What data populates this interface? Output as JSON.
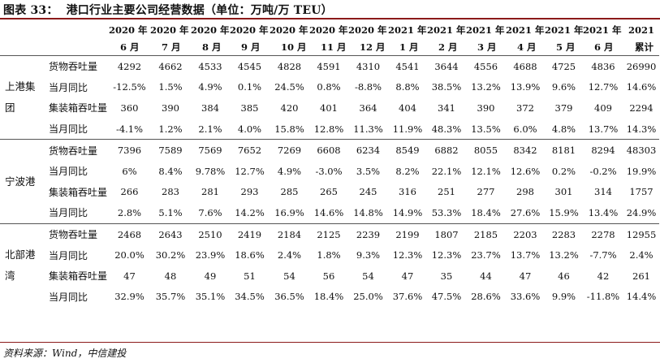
{
  "title": {
    "label": "图表 33：",
    "text": "港口行业主要公司经营数据（单位：万吨/万 TEU）"
  },
  "header": {
    "years": [
      "2020 年",
      "2020 年",
      "2020 年",
      "2020 年",
      "2020 年",
      "2020 年",
      "2020 年",
      "2021 年",
      "2021 年",
      "2021 年",
      "2021 年",
      "2021 年",
      "2021 年",
      "2021"
    ],
    "months": [
      "6 月",
      "7 月",
      "8 月",
      "9 月",
      "10 月",
      "11 月",
      "12 月",
      "1 月",
      "2 月",
      "3 月",
      "4 月",
      "5 月",
      "6 月",
      "累计"
    ]
  },
  "groups": [
    {
      "name": "上港集团",
      "rows": [
        {
          "metric": "货物吞吐量",
          "values": [
            "4292",
            "4662",
            "4533",
            "4545",
            "4828",
            "4591",
            "4310",
            "4541",
            "3644",
            "4556",
            "4688",
            "4725",
            "4836",
            "26990"
          ]
        },
        {
          "metric": "当月同比",
          "values": [
            "-12.5%",
            "1.5%",
            "4.9%",
            "0.1%",
            "24.5%",
            "0.8%",
            "-8.8%",
            "8.8%",
            "38.5%",
            "13.2%",
            "13.9%",
            "9.6%",
            "12.7%",
            "14.6%"
          ]
        },
        {
          "metric": "集装箱吞吐量",
          "values": [
            "360",
            "390",
            "384",
            "385",
            "420",
            "401",
            "364",
            "404",
            "341",
            "390",
            "372",
            "379",
            "409",
            "2294"
          ]
        },
        {
          "metric": "当月同比",
          "values": [
            "-4.1%",
            "1.2%",
            "2.1%",
            "4.0%",
            "15.8%",
            "12.8%",
            "11.3%",
            "11.9%",
            "48.3%",
            "13.5%",
            "6.0%",
            "4.8%",
            "13.7%",
            "14.3%"
          ]
        }
      ]
    },
    {
      "name": "宁波港",
      "rows": [
        {
          "metric": "货物吞吐量",
          "values": [
            "7396",
            "7589",
            "7569",
            "7652",
            "7269",
            "6608",
            "6234",
            "8549",
            "6882",
            "8055",
            "8342",
            "8181",
            "8294",
            "48303"
          ]
        },
        {
          "metric": "当月同比",
          "values": [
            "6%",
            "8.4%",
            "9.78%",
            "12.7%",
            "4.9%",
            "-3.0%",
            "3.5%",
            "8.2%",
            "22.1%",
            "12.1%",
            "12.6%",
            "0.2%",
            "-0.2%",
            "19.9%"
          ]
        },
        {
          "metric": "集装箱吞吐量",
          "values": [
            "266",
            "283",
            "281",
            "293",
            "285",
            "265",
            "245",
            "316",
            "251",
            "277",
            "298",
            "301",
            "314",
            "1757"
          ]
        },
        {
          "metric": "当月同比",
          "values": [
            "2.8%",
            "5.1%",
            "7.6%",
            "14.2%",
            "16.9%",
            "14.6%",
            "14.8%",
            "14.9%",
            "53.3%",
            "18.4%",
            "27.6%",
            "15.9%",
            "13.4%",
            "24.9%"
          ]
        }
      ]
    },
    {
      "name": "北部港湾",
      "rows": [
        {
          "metric": "货物吞吐量",
          "values": [
            "2468",
            "2643",
            "2510",
            "2419",
            "2184",
            "2125",
            "2239",
            "2199",
            "1807",
            "2185",
            "2203",
            "2283",
            "2278",
            "12955"
          ]
        },
        {
          "metric": "当月同比",
          "values": [
            "20.0%",
            "30.2%",
            "23.9%",
            "18.6%",
            "2.4%",
            "1.8%",
            "9.3%",
            "12.3%",
            "12.3%",
            "23.7%",
            "13.7%",
            "13.2%",
            "-7.7%",
            "2.4%"
          ]
        },
        {
          "metric": "集装箱吞吐量",
          "values": [
            "47",
            "48",
            "49",
            "51",
            "54",
            "56",
            "54",
            "47",
            "35",
            "44",
            "47",
            "46",
            "42",
            "261"
          ]
        },
        {
          "metric": "当月同比",
          "values": [
            "32.9%",
            "35.7%",
            "35.1%",
            "34.5%",
            "36.5%",
            "18.4%",
            "25.0%",
            "37.6%",
            "47.5%",
            "28.6%",
            "33.6%",
            "9.9%",
            "-11.8%",
            "14.4%"
          ]
        }
      ]
    }
  ],
  "source": "资料来源：Wind，中信建投",
  "colors": {
    "rule": "#8b1a1a",
    "text": "#111111"
  }
}
